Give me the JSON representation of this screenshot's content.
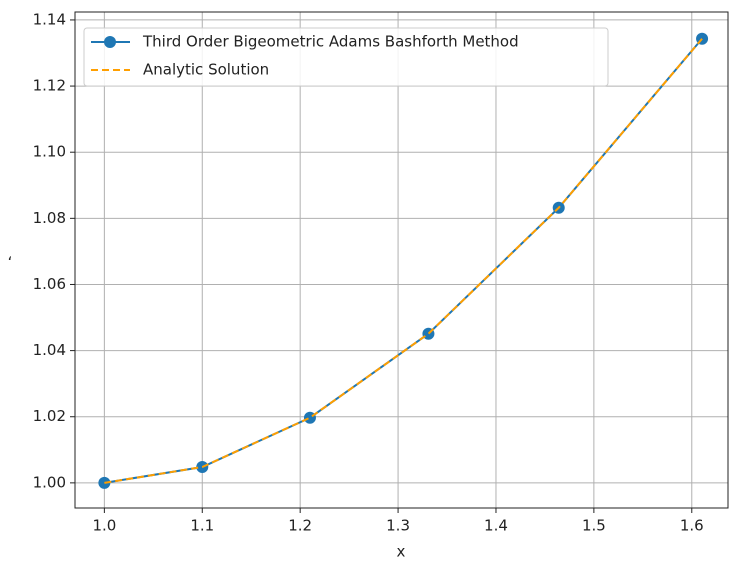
{
  "chart_data": {
    "type": "line",
    "xlabel": "x",
    "ylabel": "ʻ",
    "x": [
      1.0,
      1.1,
      1.21,
      1.331,
      1.4641,
      1.61051
    ],
    "series": [
      {
        "name": "Third Order Bigeometric Adams Bashforth Method",
        "color": "#1f77b4",
        "marker": true,
        "dashed": false,
        "values": [
          1.0,
          1.0048,
          1.0197,
          1.0451,
          1.0832,
          1.1343
        ]
      },
      {
        "name": "Analytic Solution",
        "color": "#ff9f00",
        "marker": false,
        "dashed": true,
        "values": [
          1.0,
          1.0048,
          1.0197,
          1.0451,
          1.0832,
          1.1343
        ]
      }
    ],
    "xlim": [
      0.97,
      1.637
    ],
    "ylim": [
      0.9924,
      1.1424
    ],
    "xticks": [
      {
        "value": 1.0,
        "label": "1.0"
      },
      1.1,
      1.2,
      1.3,
      1.4,
      1.5,
      1.6
    ],
    "yticks": [
      {
        "value": 1.0,
        "label": "1.00"
      },
      1.02,
      1.04,
      1.06,
      1.08,
      {
        "value": 1.1,
        "label": "1.10"
      },
      1.12,
      1.14
    ],
    "grid": true,
    "legend": "upper left"
  }
}
